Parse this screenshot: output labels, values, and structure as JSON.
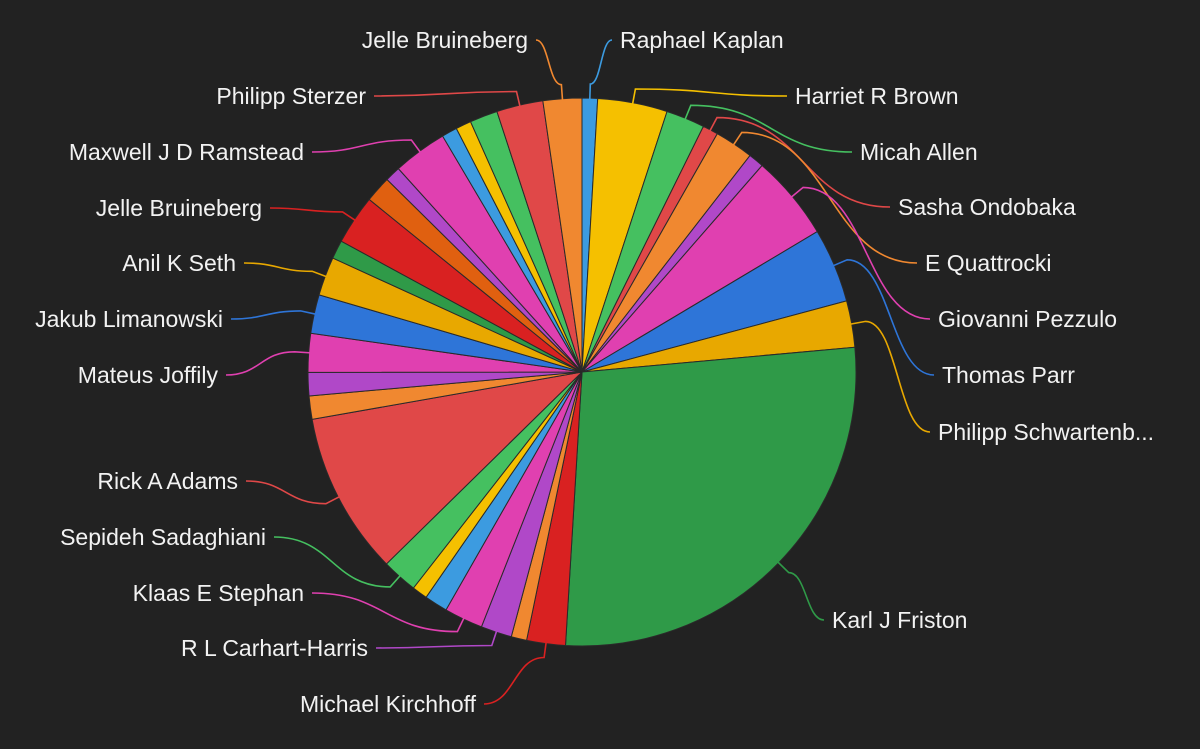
{
  "colors": {
    "background": "#222222",
    "label_text": "#f2f2f2",
    "slice_border": "#2a2a2a",
    "palette": [
      "#2f9a48",
      "#d92121",
      "#f08830",
      "#b048c8",
      "#e040b0",
      "#3c9be0",
      "#f5c000",
      "#45c060",
      "#e04848",
      "#2e75d8",
      "#e8a800",
      "#e06010"
    ]
  },
  "chart_data": {
    "type": "pie",
    "title": "",
    "start_angle_deg": 0,
    "direction": "clockwise",
    "legend": "none",
    "slices": [
      {
        "label": "Raphael Kaplan",
        "value": 1.0,
        "color": "#3c9be0",
        "show_label": true
      },
      {
        "label": "Harriet R Brown",
        "value": 4.5,
        "color": "#f5c000",
        "show_label": true
      },
      {
        "label": "Micah Allen",
        "value": 2.5,
        "color": "#45c060",
        "show_label": true
      },
      {
        "label": "Sasha Ondobaka",
        "value": 1.0,
        "color": "#e04848",
        "show_label": true
      },
      {
        "label": "E Quattrocki",
        "value": 2.5,
        "color": "#f08830",
        "show_label": true
      },
      {
        "label": "",
        "value": 1.0,
        "color": "#b048c8",
        "show_label": false
      },
      {
        "label": "Giovanni Pezzulo",
        "value": 5.5,
        "color": "#e040b0",
        "show_label": true
      },
      {
        "label": "Thomas Parr",
        "value": 4.8,
        "color": "#2e75d8",
        "show_label": true
      },
      {
        "label": "Philipp Schwartenb...",
        "value": 3.0,
        "color": "#e8a800",
        "show_label": true
      },
      {
        "label": "Karl J Friston",
        "value": 30.0,
        "color": "#2f9a48",
        "show_label": true
      },
      {
        "label": "Michael Kirchhoff",
        "value": 2.5,
        "color": "#d92121",
        "show_label": true
      },
      {
        "label": "",
        "value": 1.0,
        "color": "#f08830",
        "show_label": false
      },
      {
        "label": "R L Carhart-Harris",
        "value": 2.0,
        "color": "#b048c8",
        "show_label": true
      },
      {
        "label": "Klaas E Stephan",
        "value": 2.5,
        "color": "#e040b0",
        "show_label": true
      },
      {
        "label": "",
        "value": 1.5,
        "color": "#3c9be0",
        "show_label": false
      },
      {
        "label": "",
        "value": 1.0,
        "color": "#f5c000",
        "show_label": false
      },
      {
        "label": "Sepideh Sadaghiani",
        "value": 2.3,
        "color": "#45c060",
        "show_label": true
      },
      {
        "label": "Rick A Adams",
        "value": 10.5,
        "color": "#e04848",
        "show_label": true
      },
      {
        "label": "",
        "value": 1.5,
        "color": "#f08830",
        "show_label": false
      },
      {
        "label": "",
        "value": 1.5,
        "color": "#b048c8",
        "show_label": false
      },
      {
        "label": "Mateus Joffily",
        "value": 2.5,
        "color": "#e040b0",
        "show_label": true
      },
      {
        "label": "Jakub Limanowski",
        "value": 2.5,
        "color": "#2e75d8",
        "show_label": true
      },
      {
        "label": "Anil K Seth",
        "value": 2.5,
        "color": "#e8a800",
        "show_label": true
      },
      {
        "label": "",
        "value": 1.2,
        "color": "#2f9a48",
        "show_label": false
      },
      {
        "label": "Jelle Bruineberg",
        "value": 3.2,
        "color": "#d92121",
        "show_label": true
      },
      {
        "label": "",
        "value": 1.7,
        "color": "#e06010",
        "show_label": false
      },
      {
        "label": "",
        "value": 1.0,
        "color": "#b048c8",
        "show_label": false
      },
      {
        "label": "Maxwell J D Ramstead",
        "value": 3.5,
        "color": "#e040b0",
        "show_label": true
      },
      {
        "label": "",
        "value": 1.0,
        "color": "#3c9be0",
        "show_label": false
      },
      {
        "label": "",
        "value": 1.0,
        "color": "#f5c000",
        "show_label": false
      },
      {
        "label": "",
        "value": 1.8,
        "color": "#45c060",
        "show_label": false
      },
      {
        "label": "Philipp Sterzer",
        "value": 3.0,
        "color": "#e04848",
        "show_label": true
      },
      {
        "label": "Jelle Bruineberg",
        "value": 2.5,
        "color": "#f08830",
        "show_label": true
      }
    ]
  }
}
